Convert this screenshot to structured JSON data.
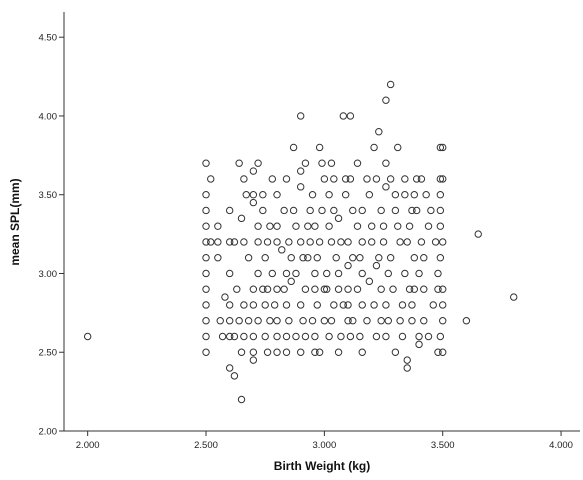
{
  "chart_data": {
    "type": "scatter",
    "xlabel": "Birth Weight (kg)",
    "ylabel": "mean SPL(mm)",
    "xlim": [
      1.9,
      4.08
    ],
    "ylim": [
      2.0,
      4.66
    ],
    "xticks": [
      2.0,
      2.5,
      3.0,
      3.5,
      4.0
    ],
    "xtick_labels": [
      "2.000",
      "2.500",
      "3.000",
      "3.500",
      "4.000"
    ],
    "yticks": [
      2.0,
      2.5,
      3.0,
      3.5,
      4.0,
      4.5
    ],
    "ytick_labels": [
      "2.00",
      "2.50",
      "3.00",
      "3.50",
      "4.00",
      "4.50"
    ],
    "grid": false,
    "marker": "open-circle",
    "marker_color": "#333333",
    "points": [
      {
        "x": 2.0,
        "y": 2.6
      },
      {
        "x": 3.8,
        "y": 2.85
      },
      {
        "x": 3.65,
        "y": 3.25
      },
      {
        "x": 3.6,
        "y": 2.7
      },
      {
        "x": 2.65,
        "y": 2.2
      },
      {
        "x": 2.62,
        "y": 2.35
      },
      {
        "x": 2.6,
        "y": 2.4
      },
      {
        "x": 3.28,
        "y": 4.2
      },
      {
        "x": 3.26,
        "y": 4.1
      },
      {
        "x": 2.9,
        "y": 4.0
      },
      {
        "x": 3.08,
        "y": 4.0
      },
      {
        "x": 3.11,
        "y": 4.0
      },
      {
        "x": 3.23,
        "y": 3.9
      },
      {
        "x": 2.87,
        "y": 3.8
      },
      {
        "x": 2.98,
        "y": 3.8
      },
      {
        "x": 3.21,
        "y": 3.8
      },
      {
        "x": 3.31,
        "y": 3.8
      },
      {
        "x": 3.49,
        "y": 3.8
      },
      {
        "x": 3.5,
        "y": 3.8
      },
      {
        "x": 2.5,
        "y": 3.7
      },
      {
        "x": 2.64,
        "y": 3.7
      },
      {
        "x": 2.72,
        "y": 3.7
      },
      {
        "x": 2.92,
        "y": 3.7
      },
      {
        "x": 2.99,
        "y": 3.7
      },
      {
        "x": 3.03,
        "y": 3.7
      },
      {
        "x": 3.14,
        "y": 3.7
      },
      {
        "x": 3.26,
        "y": 3.7
      },
      {
        "x": 2.52,
        "y": 3.6
      },
      {
        "x": 2.66,
        "y": 3.6
      },
      {
        "x": 2.7,
        "y": 3.65
      },
      {
        "x": 2.78,
        "y": 3.6
      },
      {
        "x": 2.84,
        "y": 3.6
      },
      {
        "x": 2.9,
        "y": 3.65
      },
      {
        "x": 3.0,
        "y": 3.6
      },
      {
        "x": 3.04,
        "y": 3.6
      },
      {
        "x": 3.09,
        "y": 3.6
      },
      {
        "x": 3.11,
        "y": 3.6
      },
      {
        "x": 3.18,
        "y": 3.6
      },
      {
        "x": 3.22,
        "y": 3.6
      },
      {
        "x": 3.28,
        "y": 3.6
      },
      {
        "x": 3.34,
        "y": 3.6
      },
      {
        "x": 3.39,
        "y": 3.6
      },
      {
        "x": 3.41,
        "y": 3.6
      },
      {
        "x": 3.49,
        "y": 3.6
      },
      {
        "x": 3.5,
        "y": 3.6
      },
      {
        "x": 2.5,
        "y": 3.5
      },
      {
        "x": 2.67,
        "y": 3.5
      },
      {
        "x": 2.7,
        "y": 3.5
      },
      {
        "x": 2.74,
        "y": 3.5
      },
      {
        "x": 2.8,
        "y": 3.5
      },
      {
        "x": 2.9,
        "y": 3.55
      },
      {
        "x": 2.95,
        "y": 3.5
      },
      {
        "x": 3.02,
        "y": 3.5
      },
      {
        "x": 3.09,
        "y": 3.5
      },
      {
        "x": 3.19,
        "y": 3.5
      },
      {
        "x": 3.26,
        "y": 3.55
      },
      {
        "x": 3.3,
        "y": 3.5
      },
      {
        "x": 3.34,
        "y": 3.5
      },
      {
        "x": 3.38,
        "y": 3.5
      },
      {
        "x": 3.43,
        "y": 3.5
      },
      {
        "x": 3.49,
        "y": 3.5
      },
      {
        "x": 2.5,
        "y": 3.4
      },
      {
        "x": 2.6,
        "y": 3.4
      },
      {
        "x": 2.7,
        "y": 3.45
      },
      {
        "x": 2.74,
        "y": 3.4
      },
      {
        "x": 2.83,
        "y": 3.4
      },
      {
        "x": 2.87,
        "y": 3.4
      },
      {
        "x": 2.94,
        "y": 3.4
      },
      {
        "x": 2.99,
        "y": 3.4
      },
      {
        "x": 3.04,
        "y": 3.4
      },
      {
        "x": 3.12,
        "y": 3.4
      },
      {
        "x": 3.16,
        "y": 3.4
      },
      {
        "x": 3.24,
        "y": 3.4
      },
      {
        "x": 3.3,
        "y": 3.4
      },
      {
        "x": 3.37,
        "y": 3.4
      },
      {
        "x": 3.39,
        "y": 3.4
      },
      {
        "x": 3.45,
        "y": 3.4
      },
      {
        "x": 3.49,
        "y": 3.4
      },
      {
        "x": 2.5,
        "y": 3.3
      },
      {
        "x": 2.55,
        "y": 3.3
      },
      {
        "x": 2.65,
        "y": 3.35
      },
      {
        "x": 2.72,
        "y": 3.3
      },
      {
        "x": 2.77,
        "y": 3.3
      },
      {
        "x": 2.8,
        "y": 3.3
      },
      {
        "x": 2.88,
        "y": 3.3
      },
      {
        "x": 2.93,
        "y": 3.3
      },
      {
        "x": 2.96,
        "y": 3.3
      },
      {
        "x": 3.02,
        "y": 3.3
      },
      {
        "x": 3.06,
        "y": 3.35
      },
      {
        "x": 3.14,
        "y": 3.3
      },
      {
        "x": 3.2,
        "y": 3.3
      },
      {
        "x": 3.25,
        "y": 3.3
      },
      {
        "x": 3.31,
        "y": 3.3
      },
      {
        "x": 3.36,
        "y": 3.3
      },
      {
        "x": 3.44,
        "y": 3.3
      },
      {
        "x": 3.49,
        "y": 3.3
      },
      {
        "x": 2.5,
        "y": 3.2
      },
      {
        "x": 2.52,
        "y": 3.2
      },
      {
        "x": 2.55,
        "y": 3.2
      },
      {
        "x": 2.6,
        "y": 3.2
      },
      {
        "x": 2.62,
        "y": 3.2
      },
      {
        "x": 2.66,
        "y": 3.2
      },
      {
        "x": 2.72,
        "y": 3.2
      },
      {
        "x": 2.76,
        "y": 3.2
      },
      {
        "x": 2.8,
        "y": 3.2
      },
      {
        "x": 2.85,
        "y": 3.2
      },
      {
        "x": 2.9,
        "y": 3.2
      },
      {
        "x": 2.94,
        "y": 3.2
      },
      {
        "x": 2.98,
        "y": 3.2
      },
      {
        "x": 3.03,
        "y": 3.2
      },
      {
        "x": 3.07,
        "y": 3.2
      },
      {
        "x": 3.1,
        "y": 3.2
      },
      {
        "x": 3.16,
        "y": 3.2
      },
      {
        "x": 3.2,
        "y": 3.2
      },
      {
        "x": 3.25,
        "y": 3.2
      },
      {
        "x": 3.32,
        "y": 3.2
      },
      {
        "x": 3.35,
        "y": 3.2
      },
      {
        "x": 3.41,
        "y": 3.2
      },
      {
        "x": 3.47,
        "y": 3.2
      },
      {
        "x": 3.5,
        "y": 3.2
      },
      {
        "x": 2.5,
        "y": 3.1
      },
      {
        "x": 2.55,
        "y": 3.1
      },
      {
        "x": 2.68,
        "y": 3.1
      },
      {
        "x": 2.75,
        "y": 3.1
      },
      {
        "x": 2.82,
        "y": 3.15
      },
      {
        "x": 2.86,
        "y": 3.1
      },
      {
        "x": 2.91,
        "y": 3.1
      },
      {
        "x": 2.93,
        "y": 3.1
      },
      {
        "x": 2.97,
        "y": 3.1
      },
      {
        "x": 3.05,
        "y": 3.1
      },
      {
        "x": 3.12,
        "y": 3.1
      },
      {
        "x": 3.15,
        "y": 3.1
      },
      {
        "x": 3.23,
        "y": 3.1
      },
      {
        "x": 3.28,
        "y": 3.1
      },
      {
        "x": 3.38,
        "y": 3.1
      },
      {
        "x": 3.42,
        "y": 3.1
      },
      {
        "x": 3.49,
        "y": 3.1
      },
      {
        "x": 2.5,
        "y": 3.0
      },
      {
        "x": 2.6,
        "y": 3.0
      },
      {
        "x": 2.72,
        "y": 3.0
      },
      {
        "x": 2.78,
        "y": 3.0
      },
      {
        "x": 2.84,
        "y": 3.0
      },
      {
        "x": 2.88,
        "y": 3.0
      },
      {
        "x": 2.96,
        "y": 3.0
      },
      {
        "x": 3.01,
        "y": 3.0
      },
      {
        "x": 3.06,
        "y": 3.0
      },
      {
        "x": 3.1,
        "y": 3.05
      },
      {
        "x": 3.16,
        "y": 3.0
      },
      {
        "x": 3.22,
        "y": 3.05
      },
      {
        "x": 3.27,
        "y": 3.0
      },
      {
        "x": 3.34,
        "y": 3.0
      },
      {
        "x": 3.4,
        "y": 3.0
      },
      {
        "x": 3.48,
        "y": 3.0
      },
      {
        "x": 2.5,
        "y": 2.9
      },
      {
        "x": 2.63,
        "y": 2.9
      },
      {
        "x": 2.7,
        "y": 2.9
      },
      {
        "x": 2.74,
        "y": 2.9
      },
      {
        "x": 2.76,
        "y": 2.9
      },
      {
        "x": 2.8,
        "y": 2.9
      },
      {
        "x": 2.83,
        "y": 2.9
      },
      {
        "x": 2.86,
        "y": 2.95
      },
      {
        "x": 2.92,
        "y": 2.9
      },
      {
        "x": 2.96,
        "y": 2.9
      },
      {
        "x": 3.0,
        "y": 2.9
      },
      {
        "x": 3.01,
        "y": 2.9
      },
      {
        "x": 3.06,
        "y": 2.9
      },
      {
        "x": 3.1,
        "y": 2.9
      },
      {
        "x": 3.14,
        "y": 2.9
      },
      {
        "x": 3.19,
        "y": 2.95
      },
      {
        "x": 3.24,
        "y": 2.9
      },
      {
        "x": 3.29,
        "y": 2.9
      },
      {
        "x": 3.36,
        "y": 2.9
      },
      {
        "x": 3.38,
        "y": 2.9
      },
      {
        "x": 3.42,
        "y": 2.9
      },
      {
        "x": 3.48,
        "y": 2.9
      },
      {
        "x": 3.5,
        "y": 2.9
      },
      {
        "x": 2.5,
        "y": 2.8
      },
      {
        "x": 2.58,
        "y": 2.85
      },
      {
        "x": 2.6,
        "y": 2.8
      },
      {
        "x": 2.66,
        "y": 2.8
      },
      {
        "x": 2.7,
        "y": 2.8
      },
      {
        "x": 2.75,
        "y": 2.8
      },
      {
        "x": 2.79,
        "y": 2.8
      },
      {
        "x": 2.84,
        "y": 2.8
      },
      {
        "x": 2.9,
        "y": 2.8
      },
      {
        "x": 2.97,
        "y": 2.8
      },
      {
        "x": 3.04,
        "y": 2.8
      },
      {
        "x": 3.08,
        "y": 2.8
      },
      {
        "x": 3.1,
        "y": 2.8
      },
      {
        "x": 3.16,
        "y": 2.8
      },
      {
        "x": 3.21,
        "y": 2.8
      },
      {
        "x": 3.26,
        "y": 2.8
      },
      {
        "x": 3.33,
        "y": 2.8
      },
      {
        "x": 3.37,
        "y": 2.8
      },
      {
        "x": 3.46,
        "y": 2.8
      },
      {
        "x": 3.5,
        "y": 2.8
      },
      {
        "x": 2.5,
        "y": 2.7
      },
      {
        "x": 2.56,
        "y": 2.7
      },
      {
        "x": 2.6,
        "y": 2.7
      },
      {
        "x": 2.64,
        "y": 2.7
      },
      {
        "x": 2.68,
        "y": 2.7
      },
      {
        "x": 2.72,
        "y": 2.7
      },
      {
        "x": 2.77,
        "y": 2.7
      },
      {
        "x": 2.8,
        "y": 2.7
      },
      {
        "x": 2.85,
        "y": 2.7
      },
      {
        "x": 2.91,
        "y": 2.7
      },
      {
        "x": 2.95,
        "y": 2.7
      },
      {
        "x": 3.0,
        "y": 2.7
      },
      {
        "x": 3.03,
        "y": 2.7
      },
      {
        "x": 3.1,
        "y": 2.7
      },
      {
        "x": 3.12,
        "y": 2.7
      },
      {
        "x": 3.18,
        "y": 2.7
      },
      {
        "x": 3.24,
        "y": 2.7
      },
      {
        "x": 3.27,
        "y": 2.7
      },
      {
        "x": 3.32,
        "y": 2.7
      },
      {
        "x": 3.37,
        "y": 2.7
      },
      {
        "x": 3.42,
        "y": 2.7
      },
      {
        "x": 3.5,
        "y": 2.7
      },
      {
        "x": 2.5,
        "y": 2.6
      },
      {
        "x": 2.57,
        "y": 2.6
      },
      {
        "x": 2.6,
        "y": 2.6
      },
      {
        "x": 2.62,
        "y": 2.6
      },
      {
        "x": 2.66,
        "y": 2.6
      },
      {
        "x": 2.7,
        "y": 2.6
      },
      {
        "x": 2.75,
        "y": 2.6
      },
      {
        "x": 2.8,
        "y": 2.6
      },
      {
        "x": 2.84,
        "y": 2.6
      },
      {
        "x": 2.88,
        "y": 2.6
      },
      {
        "x": 2.92,
        "y": 2.6
      },
      {
        "x": 2.96,
        "y": 2.6
      },
      {
        "x": 3.02,
        "y": 2.6
      },
      {
        "x": 3.07,
        "y": 2.6
      },
      {
        "x": 3.11,
        "y": 2.6
      },
      {
        "x": 3.15,
        "y": 2.6
      },
      {
        "x": 3.22,
        "y": 2.6
      },
      {
        "x": 3.26,
        "y": 2.6
      },
      {
        "x": 3.33,
        "y": 2.6
      },
      {
        "x": 3.4,
        "y": 2.6
      },
      {
        "x": 3.44,
        "y": 2.6
      },
      {
        "x": 3.49,
        "y": 2.6
      },
      {
        "x": 2.5,
        "y": 2.5
      },
      {
        "x": 2.65,
        "y": 2.5
      },
      {
        "x": 2.7,
        "y": 2.5
      },
      {
        "x": 2.7,
        "y": 2.45
      },
      {
        "x": 2.76,
        "y": 2.5
      },
      {
        "x": 2.8,
        "y": 2.5
      },
      {
        "x": 2.84,
        "y": 2.5
      },
      {
        "x": 2.9,
        "y": 2.5
      },
      {
        "x": 2.96,
        "y": 2.5
      },
      {
        "x": 2.98,
        "y": 2.5
      },
      {
        "x": 3.06,
        "y": 2.5
      },
      {
        "x": 3.16,
        "y": 2.5
      },
      {
        "x": 3.3,
        "y": 2.5
      },
      {
        "x": 3.35,
        "y": 2.45
      },
      {
        "x": 3.35,
        "y": 2.4
      },
      {
        "x": 3.4,
        "y": 2.55
      },
      {
        "x": 3.48,
        "y": 2.5
      },
      {
        "x": 3.5,
        "y": 2.5
      }
    ]
  }
}
